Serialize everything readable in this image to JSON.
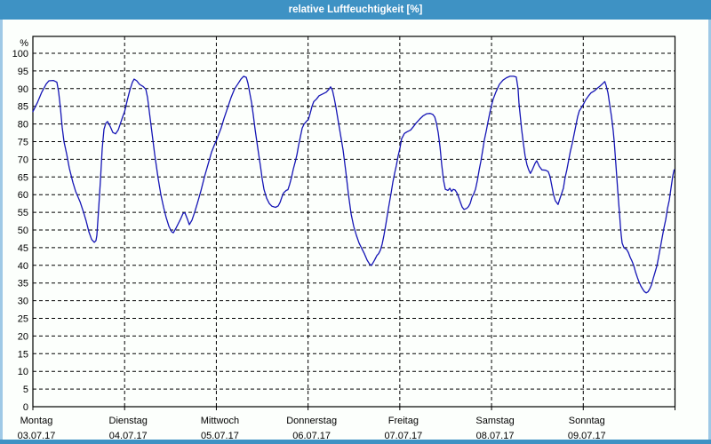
{
  "window": {
    "title": "relative Luftfeuchtigkeit [%]"
  },
  "colors": {
    "titlebar": "#3e92c4",
    "side_border": "#9fc9e6",
    "bottom_border": "#3e92c4",
    "background": "#fcfffc",
    "axis": "#000000",
    "grid": "#000000",
    "line": "#1515b5",
    "title_text": "#ffffff",
    "tick_text": "#000000"
  },
  "chart_data": {
    "type": "line",
    "title": "relative Luftfeuchtigkeit [%]",
    "xlabel": "",
    "ylabel": "%",
    "ylim": [
      0,
      105
    ],
    "ytick_step": 5,
    "yticks": [
      0,
      5,
      10,
      15,
      20,
      25,
      30,
      35,
      40,
      45,
      50,
      55,
      60,
      65,
      70,
      75,
      80,
      85,
      90,
      95,
      100
    ],
    "grid": true,
    "legend": "none",
    "x_axis_unit": "days",
    "x_range_days": 7,
    "days": [
      {
        "weekday": "Montag",
        "date": "03.07.17"
      },
      {
        "weekday": "Dienstag",
        "date": "04.07.17"
      },
      {
        "weekday": "Mittwoch",
        "date": "05.07.17"
      },
      {
        "weekday": "Donnerstag",
        "date": "06.07.17"
      },
      {
        "weekday": "Freitag",
        "date": "07.07.17"
      },
      {
        "weekday": "Samstag",
        "date": "08.07.17"
      },
      {
        "weekday": "Sonntag",
        "date": "09.07.17"
      }
    ],
    "series": [
      {
        "name": "relative Luftfeuchtigkeit [%]",
        "color": "#1515b5",
        "points": [
          [
            0.0,
            83.5
          ],
          [
            0.048,
            86
          ],
          [
            0.097,
            89
          ],
          [
            0.145,
            91.3
          ],
          [
            0.174,
            92.2
          ],
          [
            0.223,
            92.3
          ],
          [
            0.262,
            91.8
          ],
          [
            0.281,
            89
          ],
          [
            0.3,
            84.5
          ],
          [
            0.32,
            79
          ],
          [
            0.339,
            75
          ],
          [
            0.368,
            71.5
          ],
          [
            0.397,
            67.5
          ],
          [
            0.436,
            63.5
          ],
          [
            0.465,
            61
          ],
          [
            0.514,
            58
          ],
          [
            0.552,
            55
          ],
          [
            0.581,
            52.5
          ],
          [
            0.61,
            49.5
          ],
          [
            0.64,
            47.3
          ],
          [
            0.669,
            46.5
          ],
          [
            0.688,
            47
          ],
          [
            0.698,
            48.5
          ],
          [
            0.717,
            56
          ],
          [
            0.736,
            64
          ],
          [
            0.756,
            73
          ],
          [
            0.775,
            78.5
          ],
          [
            0.795,
            80.2
          ],
          [
            0.814,
            80.7
          ],
          [
            0.843,
            79.3
          ],
          [
            0.872,
            77.6
          ],
          [
            0.901,
            77.2
          ],
          [
            0.93,
            78.3
          ],
          [
            0.959,
            80.5
          ],
          [
            0.979,
            82
          ],
          [
            1.0,
            83.5
          ],
          [
            1.027,
            86.5
          ],
          [
            1.056,
            89.5
          ],
          [
            1.085,
            91.8
          ],
          [
            1.104,
            92.7
          ],
          [
            1.133,
            92.2
          ],
          [
            1.163,
            91.2
          ],
          [
            1.202,
            90.6
          ],
          [
            1.231,
            89.8
          ],
          [
            1.25,
            87.5
          ],
          [
            1.269,
            83.5
          ],
          [
            1.289,
            79.5
          ],
          [
            1.308,
            75.5
          ],
          [
            1.327,
            71.5
          ],
          [
            1.347,
            68
          ],
          [
            1.366,
            64.5
          ],
          [
            1.395,
            60
          ],
          [
            1.424,
            56.5
          ],
          [
            1.453,
            53.5
          ],
          [
            1.483,
            51
          ],
          [
            1.512,
            49.5
          ],
          [
            1.531,
            49.2
          ],
          [
            1.56,
            50.5
          ],
          [
            1.589,
            52
          ],
          [
            1.608,
            53
          ],
          [
            1.637,
            54.7
          ],
          [
            1.657,
            54.9
          ],
          [
            1.686,
            53
          ],
          [
            1.705,
            51.5
          ],
          [
            1.734,
            52.8
          ],
          [
            1.763,
            55
          ],
          [
            1.792,
            57.5
          ],
          [
            1.831,
            61
          ],
          [
            1.87,
            65
          ],
          [
            1.909,
            68.5
          ],
          [
            1.947,
            72
          ],
          [
            1.977,
            74
          ],
          [
            2.0,
            75.3
          ],
          [
            2.025,
            77
          ],
          [
            2.054,
            79
          ],
          [
            2.083,
            81.5
          ],
          [
            2.122,
            84.5
          ],
          [
            2.161,
            87.5
          ],
          [
            2.2,
            90
          ],
          [
            2.239,
            91.5
          ],
          [
            2.268,
            92.7
          ],
          [
            2.297,
            93.5
          ],
          [
            2.326,
            93.2
          ],
          [
            2.345,
            91.5
          ],
          [
            2.364,
            88.8
          ],
          [
            2.384,
            86
          ],
          [
            2.403,
            82.5
          ],
          [
            2.422,
            78.5
          ],
          [
            2.442,
            75
          ],
          [
            2.461,
            71.5
          ],
          [
            2.481,
            68
          ],
          [
            2.5,
            64.5
          ],
          [
            2.519,
            61.5
          ],
          [
            2.548,
            59
          ],
          [
            2.577,
            57.5
          ],
          [
            2.606,
            56.7
          ],
          [
            2.645,
            56.4
          ],
          [
            2.674,
            56.8
          ],
          [
            2.694,
            57.8
          ],
          [
            2.713,
            59.2
          ],
          [
            2.733,
            60.5
          ],
          [
            2.762,
            61.2
          ],
          [
            2.781,
            61.4
          ],
          [
            2.8,
            63
          ],
          [
            2.82,
            65
          ],
          [
            2.839,
            67.2
          ],
          [
            2.859,
            69.2
          ],
          [
            2.878,
            71.3
          ],
          [
            2.897,
            74
          ],
          [
            2.917,
            76.5
          ],
          [
            2.936,
            78.8
          ],
          [
            2.955,
            79.9
          ],
          [
            2.984,
            80.8
          ],
          [
            3.003,
            81.3
          ],
          [
            3.023,
            83
          ],
          [
            3.043,
            85
          ],
          [
            3.062,
            86.3
          ],
          [
            3.091,
            87
          ],
          [
            3.12,
            88
          ],
          [
            3.159,
            88.5
          ],
          [
            3.198,
            89
          ],
          [
            3.227,
            89.8
          ],
          [
            3.246,
            90.5
          ],
          [
            3.266,
            89.5
          ],
          [
            3.285,
            87.2
          ],
          [
            3.304,
            84.7
          ],
          [
            3.324,
            81.5
          ],
          [
            3.353,
            77
          ],
          [
            3.382,
            72.5
          ],
          [
            3.411,
            66.5
          ],
          [
            3.44,
            60
          ],
          [
            3.469,
            54.5
          ],
          [
            3.498,
            51
          ],
          [
            3.527,
            48.5
          ],
          [
            3.556,
            46.3
          ],
          [
            3.585,
            44.8
          ],
          [
            3.614,
            43.3
          ],
          [
            3.643,
            41.5
          ],
          [
            3.672,
            40.3
          ],
          [
            3.691,
            40
          ],
          [
            3.721,
            41.3
          ],
          [
            3.75,
            42.8
          ],
          [
            3.769,
            43.3
          ],
          [
            3.788,
            44.3
          ],
          [
            3.808,
            46
          ],
          [
            3.827,
            48.5
          ],
          [
            3.847,
            51.5
          ],
          [
            3.866,
            54.5
          ],
          [
            3.885,
            57.5
          ],
          [
            3.905,
            60.5
          ],
          [
            3.924,
            63.5
          ],
          [
            3.943,
            66
          ],
          [
            3.962,
            68.2
          ],
          [
            3.982,
            71
          ],
          [
            4.0,
            73
          ],
          [
            4.02,
            75.8
          ],
          [
            4.05,
            77.3
          ],
          [
            4.079,
            77.8
          ],
          [
            4.118,
            78.3
          ],
          [
            4.147,
            79.2
          ],
          [
            4.176,
            80.2
          ],
          [
            4.215,
            81.3
          ],
          [
            4.254,
            82.3
          ],
          [
            4.293,
            82.9
          ],
          [
            4.331,
            83
          ],
          [
            4.36,
            82.7
          ],
          [
            4.38,
            82
          ],
          [
            4.399,
            80.3
          ],
          [
            4.419,
            77.5
          ],
          [
            4.438,
            73.5
          ],
          [
            4.457,
            68.5
          ],
          [
            4.477,
            64
          ],
          [
            4.496,
            61.5
          ],
          [
            4.525,
            61.2
          ],
          [
            4.545,
            61.8
          ],
          [
            4.564,
            60.9
          ],
          [
            4.583,
            61.5
          ],
          [
            4.603,
            61.3
          ],
          [
            4.622,
            60.5
          ],
          [
            4.641,
            59.3
          ],
          [
            4.661,
            57.8
          ],
          [
            4.68,
            56.5
          ],
          [
            4.7,
            55.8
          ],
          [
            4.729,
            56.1
          ],
          [
            4.748,
            56.6
          ],
          [
            4.767,
            57.5
          ],
          [
            4.787,
            59.3
          ],
          [
            4.806,
            60.2
          ],
          [
            4.825,
            61.5
          ],
          [
            4.845,
            64
          ],
          [
            4.864,
            66.8
          ],
          [
            4.884,
            69.5
          ],
          [
            4.903,
            72.5
          ],
          [
            4.922,
            75.5
          ],
          [
            4.942,
            78
          ],
          [
            4.961,
            80.5
          ],
          [
            4.98,
            83
          ],
          [
            5.0,
            85.3
          ],
          [
            5.018,
            87
          ],
          [
            5.047,
            89
          ],
          [
            5.086,
            91.2
          ],
          [
            5.125,
            92.4
          ],
          [
            5.164,
            93.1
          ],
          [
            5.202,
            93.5
          ],
          [
            5.241,
            93.5
          ],
          [
            5.27,
            93.3
          ],
          [
            5.289,
            90
          ],
          [
            5.299,
            86
          ],
          [
            5.318,
            81
          ],
          [
            5.328,
            78.5
          ],
          [
            5.347,
            74.5
          ],
          [
            5.366,
            71
          ],
          [
            5.386,
            68.5
          ],
          [
            5.405,
            67
          ],
          [
            5.424,
            66
          ],
          [
            5.444,
            67
          ],
          [
            5.473,
            68.8
          ],
          [
            5.492,
            69.6
          ],
          [
            5.521,
            68
          ],
          [
            5.55,
            67
          ],
          [
            5.589,
            66.9
          ],
          [
            5.618,
            66.5
          ],
          [
            5.637,
            65.2
          ],
          [
            5.657,
            62.5
          ],
          [
            5.676,
            60
          ],
          [
            5.695,
            58.3
          ],
          [
            5.725,
            57.2
          ],
          [
            5.744,
            58.8
          ],
          [
            5.763,
            60.2
          ],
          [
            5.783,
            61.8
          ],
          [
            5.802,
            64.8
          ],
          [
            5.821,
            67
          ],
          [
            5.841,
            69.8
          ],
          [
            5.86,
            72.3
          ],
          [
            5.88,
            74.5
          ],
          [
            5.899,
            77
          ],
          [
            5.919,
            79.5
          ],
          [
            5.938,
            82
          ],
          [
            5.957,
            83.7
          ],
          [
            5.977,
            84.5
          ],
          [
            6.0,
            85.5
          ],
          [
            6.026,
            86.8
          ],
          [
            6.055,
            87.9
          ],
          [
            6.084,
            88.8
          ],
          [
            6.123,
            89.4
          ],
          [
            6.153,
            90.1
          ],
          [
            6.182,
            90.7
          ],
          [
            6.211,
            91.4
          ],
          [
            6.235,
            92
          ],
          [
            6.25,
            90.8
          ],
          [
            6.269,
            88.8
          ],
          [
            6.288,
            85.5
          ],
          [
            6.308,
            82
          ],
          [
            6.327,
            78
          ],
          [
            6.337,
            75
          ],
          [
            6.356,
            68.5
          ],
          [
            6.376,
            61
          ],
          [
            6.395,
            54.5
          ],
          [
            6.405,
            51
          ],
          [
            6.414,
            48.5
          ],
          [
            6.424,
            46.3
          ],
          [
            6.443,
            45
          ],
          [
            6.473,
            44.5
          ],
          [
            6.492,
            43.6
          ],
          [
            6.511,
            42.3
          ],
          [
            6.531,
            41.2
          ],
          [
            6.55,
            39.9
          ],
          [
            6.569,
            38.2
          ],
          [
            6.589,
            36.6
          ],
          [
            6.608,
            35.3
          ],
          [
            6.627,
            34.2
          ],
          [
            6.647,
            33.3
          ],
          [
            6.666,
            32.6
          ],
          [
            6.686,
            32.2
          ],
          [
            6.705,
            32.5
          ],
          [
            6.724,
            33.3
          ],
          [
            6.744,
            34.5
          ],
          [
            6.763,
            36.3
          ],
          [
            6.782,
            38
          ],
          [
            6.802,
            39.8
          ],
          [
            6.821,
            42.3
          ],
          [
            6.84,
            45
          ],
          [
            6.86,
            47.8
          ],
          [
            6.879,
            50.5
          ],
          [
            6.899,
            53
          ],
          [
            6.918,
            56
          ],
          [
            6.938,
            58.5
          ],
          [
            6.957,
            62
          ],
          [
            6.976,
            65.3
          ],
          [
            6.99,
            67
          ]
        ]
      }
    ]
  }
}
